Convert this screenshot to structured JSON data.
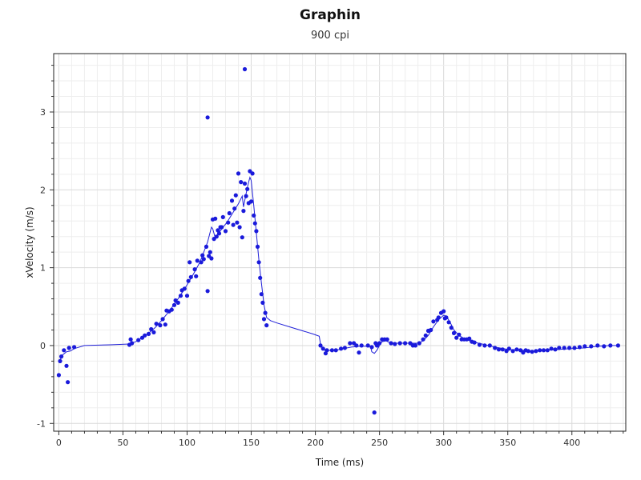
{
  "chart_data": {
    "type": "scatter",
    "title": "Graphin",
    "subtitle": "900 cpi",
    "xlabel": "Time (ms)",
    "ylabel": "xVelocity (m/s)",
    "xlim": [
      -4,
      442
    ],
    "ylim": [
      -1.1,
      3.75
    ],
    "xticks": [
      0,
      50,
      100,
      150,
      200,
      250,
      300,
      350,
      400
    ],
    "yticks": [
      -1,
      0,
      1,
      2,
      3
    ],
    "grid": true,
    "series": [
      {
        "kind": "scatter",
        "color": "#1a1adb",
        "points": [
          [
            0,
            -0.38
          ],
          [
            1,
            -0.2
          ],
          [
            2,
            -0.14
          ],
          [
            4,
            -0.06
          ],
          [
            6,
            -0.26
          ],
          [
            7,
            -0.47
          ],
          [
            8,
            -0.03
          ],
          [
            12,
            -0.02
          ],
          [
            55,
            0.01
          ],
          [
            56,
            0.08
          ],
          [
            57,
            0.03
          ],
          [
            62,
            0.07
          ],
          [
            65,
            0.1
          ],
          [
            67,
            0.13
          ],
          [
            70,
            0.15
          ],
          [
            72,
            0.21
          ],
          [
            74,
            0.17
          ],
          [
            76,
            0.28
          ],
          [
            79,
            0.26
          ],
          [
            81,
            0.34
          ],
          [
            83,
            0.27
          ],
          [
            84,
            0.45
          ],
          [
            86,
            0.44
          ],
          [
            88,
            0.46
          ],
          [
            90,
            0.52
          ],
          [
            91,
            0.58
          ],
          [
            93,
            0.55
          ],
          [
            95,
            0.64
          ],
          [
            96,
            0.71
          ],
          [
            98,
            0.73
          ],
          [
            100,
            0.64
          ],
          [
            101,
            0.83
          ],
          [
            102,
            1.07
          ],
          [
            103,
            0.88
          ],
          [
            106,
            0.98
          ],
          [
            107,
            0.89
          ],
          [
            108,
            1.09
          ],
          [
            111,
            1.07
          ],
          [
            112,
            1.16
          ],
          [
            113,
            1.11
          ],
          [
            115,
            1.27
          ],
          [
            116,
            0.7
          ],
          [
            117,
            1.15
          ],
          [
            118,
            1.2
          ],
          [
            119,
            1.12
          ],
          [
            120,
            1.62
          ],
          [
            121,
            1.37
          ],
          [
            122,
            1.63
          ],
          [
            123,
            1.4
          ],
          [
            124,
            1.48
          ],
          [
            125,
            1.44
          ],
          [
            126,
            1.52
          ],
          [
            127,
            1.52
          ],
          [
            128,
            1.65
          ],
          [
            130,
            1.47
          ],
          [
            132,
            1.58
          ],
          [
            133,
            1.7
          ],
          [
            135,
            1.86
          ],
          [
            136,
            1.55
          ],
          [
            137,
            1.76
          ],
          [
            138,
            1.93
          ],
          [
            139,
            1.58
          ],
          [
            140,
            2.21
          ],
          [
            141,
            1.52
          ],
          [
            142,
            2.1
          ],
          [
            143,
            1.39
          ],
          [
            144,
            1.73
          ],
          [
            145,
            2.08
          ],
          [
            146,
            1.92
          ],
          [
            147,
            2.01
          ],
          [
            148,
            1.83
          ],
          [
            149,
            2.24
          ],
          [
            150,
            1.85
          ],
          [
            151,
            2.21
          ],
          [
            152,
            1.67
          ],
          [
            153,
            1.57
          ],
          [
            154,
            1.47
          ],
          [
            155,
            1.27
          ],
          [
            156,
            1.07
          ],
          [
            157,
            0.87
          ],
          [
            158,
            0.66
          ],
          [
            159,
            0.55
          ],
          [
            160,
            0.34
          ],
          [
            161,
            0.42
          ],
          [
            162,
            0.26
          ],
          [
            116,
            2.93
          ],
          [
            145,
            3.55
          ],
          [
            204,
            0.0
          ],
          [
            206,
            -0.04
          ],
          [
            208,
            -0.1
          ],
          [
            209,
            -0.06
          ],
          [
            213,
            -0.06
          ],
          [
            216,
            -0.06
          ],
          [
            220,
            -0.04
          ],
          [
            223,
            -0.03
          ],
          [
            227,
            0.03
          ],
          [
            230,
            0.03
          ],
          [
            232,
            0.0
          ],
          [
            234,
            -0.09
          ],
          [
            236,
            0.0
          ],
          [
            241,
            0.0
          ],
          [
            244,
            -0.02
          ],
          [
            246,
            -0.86
          ],
          [
            247,
            0.03
          ],
          [
            248,
            0.0
          ],
          [
            250,
            0.03
          ],
          [
            252,
            0.08
          ],
          [
            254,
            0.08
          ],
          [
            256,
            0.08
          ],
          [
            259,
            0.03
          ],
          [
            262,
            0.02
          ],
          [
            266,
            0.03
          ],
          [
            270,
            0.03
          ],
          [
            274,
            0.03
          ],
          [
            276,
            0.0
          ],
          [
            278,
            0.0
          ],
          [
            281,
            0.03
          ],
          [
            284,
            0.08
          ],
          [
            286,
            0.13
          ],
          [
            288,
            0.19
          ],
          [
            290,
            0.2
          ],
          [
            292,
            0.31
          ],
          [
            295,
            0.33
          ],
          [
            296,
            0.36
          ],
          [
            298,
            0.42
          ],
          [
            300,
            0.44
          ],
          [
            301,
            0.35
          ],
          [
            302,
            0.36
          ],
          [
            304,
            0.3
          ],
          [
            306,
            0.23
          ],
          [
            308,
            0.16
          ],
          [
            310,
            0.1
          ],
          [
            312,
            0.14
          ],
          [
            314,
            0.08
          ],
          [
            316,
            0.08
          ],
          [
            318,
            0.08
          ],
          [
            320,
            0.09
          ],
          [
            322,
            0.05
          ],
          [
            324,
            0.04
          ],
          [
            328,
            0.01
          ],
          [
            332,
            0.0
          ],
          [
            336,
            0.0
          ],
          [
            340,
            -0.03
          ],
          [
            343,
            -0.05
          ],
          [
            346,
            -0.05
          ],
          [
            349,
            -0.07
          ],
          [
            351,
            -0.04
          ],
          [
            354,
            -0.07
          ],
          [
            357,
            -0.05
          ],
          [
            360,
            -0.06
          ],
          [
            362,
            -0.09
          ],
          [
            364,
            -0.06
          ],
          [
            366,
            -0.07
          ],
          [
            369,
            -0.08
          ],
          [
            372,
            -0.07
          ],
          [
            375,
            -0.06
          ],
          [
            378,
            -0.06
          ],
          [
            381,
            -0.06
          ],
          [
            384,
            -0.04
          ],
          [
            387,
            -0.05
          ],
          [
            390,
            -0.03
          ],
          [
            394,
            -0.03
          ],
          [
            398,
            -0.03
          ],
          [
            402,
            -0.03
          ],
          [
            406,
            -0.02
          ],
          [
            410,
            -0.01
          ],
          [
            415,
            -0.01
          ],
          [
            420,
            0.0
          ],
          [
            425,
            -0.01
          ],
          [
            430,
            0.0
          ],
          [
            436,
            0.0
          ]
        ]
      },
      {
        "kind": "line",
        "color": "#2020d8",
        "points": [
          [
            0,
            -0.22
          ],
          [
            3,
            -0.12
          ],
          [
            6,
            -0.08
          ],
          [
            9,
            -0.07
          ],
          [
            12,
            -0.04
          ],
          [
            20,
            0.0
          ],
          [
            40,
            0.01
          ],
          [
            55,
            0.02
          ],
          [
            60,
            0.05
          ],
          [
            65,
            0.1
          ],
          [
            70,
            0.16
          ],
          [
            75,
            0.23
          ],
          [
            80,
            0.32
          ],
          [
            85,
            0.42
          ],
          [
            90,
            0.53
          ],
          [
            95,
            0.65
          ],
          [
            100,
            0.78
          ],
          [
            105,
            0.92
          ],
          [
            110,
            1.07
          ],
          [
            113,
            1.2
          ],
          [
            116,
            1.33
          ],
          [
            119,
            1.52
          ],
          [
            120,
            1.5
          ],
          [
            122,
            1.38
          ],
          [
            125,
            1.45
          ],
          [
            128,
            1.52
          ],
          [
            131,
            1.58
          ],
          [
            134,
            1.66
          ],
          [
            137,
            1.74
          ],
          [
            140,
            1.82
          ],
          [
            143,
            1.92
          ],
          [
            144,
            1.78
          ],
          [
            146,
            1.95
          ],
          [
            148,
            2.1
          ],
          [
            149,
            2.16
          ],
          [
            150,
            2.12
          ],
          [
            152,
            1.8
          ],
          [
            154,
            1.45
          ],
          [
            156,
            1.1
          ],
          [
            158,
            0.8
          ],
          [
            160,
            0.52
          ],
          [
            162,
            0.36
          ],
          [
            165,
            0.32
          ],
          [
            170,
            0.29
          ],
          [
            180,
            0.24
          ],
          [
            190,
            0.19
          ],
          [
            198,
            0.15
          ],
          [
            203,
            0.12
          ],
          [
            204,
            0.02
          ],
          [
            206,
            -0.04
          ],
          [
            208,
            -0.07
          ],
          [
            212,
            -0.06
          ],
          [
            216,
            -0.06
          ],
          [
            222,
            -0.04
          ],
          [
            228,
            -0.02
          ],
          [
            234,
            -0.01
          ],
          [
            240,
            -0.01
          ],
          [
            243,
            -0.01
          ],
          [
            244,
            -0.08
          ],
          [
            246,
            -0.1
          ],
          [
            248,
            -0.06
          ],
          [
            250,
            0.0
          ],
          [
            252,
            0.05
          ],
          [
            255,
            0.06
          ],
          [
            258,
            0.04
          ],
          [
            262,
            0.03
          ],
          [
            268,
            0.03
          ],
          [
            274,
            0.03
          ],
          [
            280,
            0.03
          ],
          [
            284,
            0.06
          ],
          [
            288,
            0.13
          ],
          [
            292,
            0.24
          ],
          [
            296,
            0.33
          ],
          [
            300,
            0.39
          ],
          [
            302,
            0.38
          ],
          [
            305,
            0.3
          ],
          [
            308,
            0.2
          ],
          [
            312,
            0.13
          ],
          [
            316,
            0.09
          ],
          [
            322,
            0.05
          ],
          [
            330,
            0.02
          ],
          [
            340,
            -0.02
          ],
          [
            350,
            -0.05
          ],
          [
            360,
            -0.06
          ],
          [
            370,
            -0.07
          ],
          [
            380,
            -0.06
          ],
          [
            390,
            -0.05
          ],
          [
            400,
            -0.04
          ],
          [
            410,
            -0.03
          ],
          [
            420,
            -0.01
          ],
          [
            430,
            0.0
          ],
          [
            436,
            0.0
          ]
        ]
      }
    ]
  }
}
